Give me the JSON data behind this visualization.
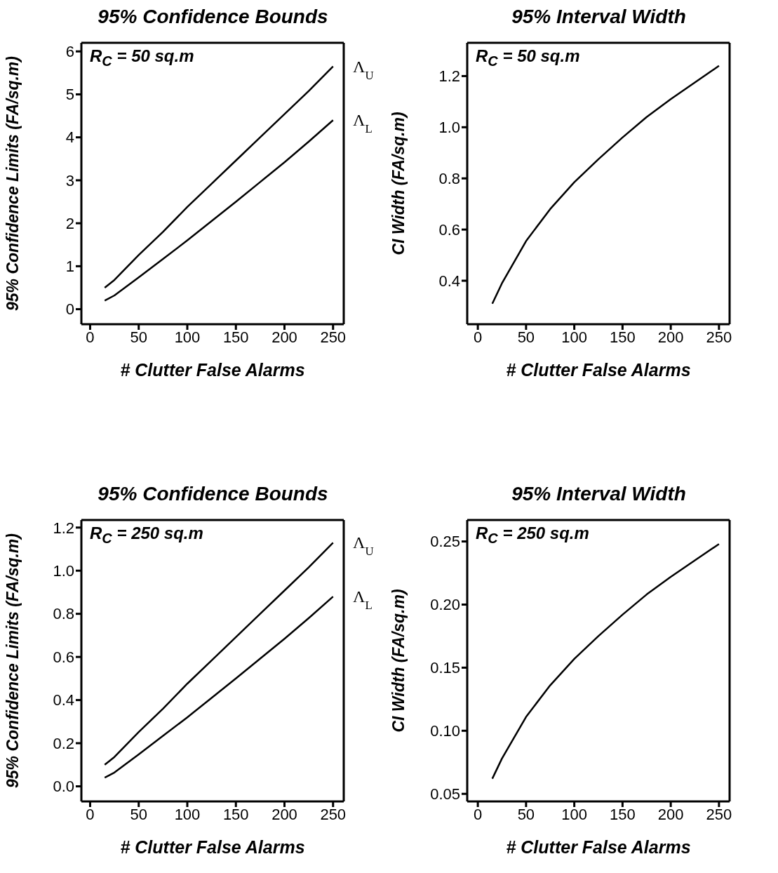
{
  "chart_data": [
    {
      "type": "line",
      "title": "95% Confidence Bounds",
      "xlabel": "# Clutter False Alarms",
      "ylabel": "95% Confidence Limits (FA/sq.m)",
      "annotations": [
        "R$_{C}$ = 50 sq.m"
      ],
      "x": [
        15,
        25,
        50,
        75,
        100,
        125,
        150,
        175,
        200,
        225,
        250
      ],
      "xlim": [
        -9,
        261
      ],
      "xticks": [
        0,
        50,
        100,
        150,
        200,
        250
      ],
      "ylim": [
        -0.35,
        6.2
      ],
      "yticks": [
        0,
        1,
        2,
        3,
        4,
        5,
        6
      ],
      "grid": false,
      "legend": false,
      "marker": "none",
      "line_style": "solid",
      "series": [
        {
          "name": "Λ$_{U}$",
          "color": "#000000",
          "values": [
            0.5,
            0.68,
            1.26,
            1.8,
            2.38,
            2.92,
            3.46,
            4.0,
            4.54,
            5.08,
            5.65
          ]
        },
        {
          "name": "Λ$_{L}$",
          "color": "#000000",
          "values": [
            0.2,
            0.32,
            0.74,
            1.17,
            1.6,
            2.05,
            2.5,
            2.96,
            3.42,
            3.9,
            4.4
          ]
        }
      ]
    },
    {
      "type": "line",
      "title": "95% Interval Width",
      "xlabel": "# Clutter False Alarms",
      "ylabel": "CI Width (FA/sq.m)",
      "annotations": [
        "R$_{C}$ = 50 sq.m"
      ],
      "x": [
        15,
        25,
        50,
        75,
        100,
        125,
        150,
        175,
        200,
        225,
        250
      ],
      "xlim": [
        -11,
        261
      ],
      "xticks": [
        0,
        50,
        100,
        150,
        200,
        250
      ],
      "ylim": [
        0.23,
        1.33
      ],
      "yticks": [
        0.4,
        0.6,
        0.8,
        {
          "value": 1,
          "label": "1.0"
        },
        1.2
      ],
      "grid": false,
      "legend": false,
      "marker": "none",
      "line_style": "solid",
      "series": [
        {
          "color": "#000000",
          "values": [
            0.31,
            0.39,
            0.555,
            0.68,
            0.785,
            0.875,
            0.96,
            1.04,
            1.11,
            1.175,
            1.24
          ]
        }
      ]
    },
    {
      "type": "line",
      "title": "95% Confidence Bounds",
      "xlabel": "# Clutter False Alarms",
      "ylabel": "95% Confidence Limits (FA/sq.m)",
      "annotations": [
        "R$_{C}$ = 250 sq.m"
      ],
      "x": [
        15,
        25,
        50,
        75,
        100,
        125,
        150,
        175,
        200,
        225,
        250
      ],
      "xlim": [
        -9,
        261
      ],
      "xticks": [
        0,
        50,
        100,
        150,
        200,
        250
      ],
      "ylim": [
        -0.07,
        1.235
      ],
      "yticks": [
        {
          "value": 0,
          "label": "0.0"
        },
        0.2,
        0.4,
        0.6,
        0.8,
        {
          "value": 1,
          "label": "1.0"
        },
        1.2
      ],
      "grid": false,
      "legend": false,
      "marker": "none",
      "line_style": "solid",
      "series": [
        {
          "name": "Λ$_{U}$",
          "color": "#000000",
          "values": [
            0.1,
            0.136,
            0.252,
            0.36,
            0.476,
            0.584,
            0.692,
            0.8,
            0.908,
            1.016,
            1.13
          ]
        },
        {
          "name": "Λ$_{L}$",
          "color": "#000000",
          "values": [
            0.04,
            0.064,
            0.148,
            0.234,
            0.32,
            0.41,
            0.5,
            0.592,
            0.684,
            0.78,
            0.88
          ]
        }
      ]
    },
    {
      "type": "line",
      "title": "95% Interval Width",
      "xlabel": "# Clutter False Alarms",
      "ylabel": "CI Width (FA/sq.m)",
      "annotations": [
        "R$_{C}$ = 250 sq.m"
      ],
      "x": [
        15,
        25,
        50,
        75,
        100,
        125,
        150,
        175,
        200,
        225,
        250
      ],
      "xlim": [
        -11,
        261
      ],
      "xticks": [
        0,
        50,
        100,
        150,
        200,
        250
      ],
      "ylim": [
        0.044,
        0.267
      ],
      "yticks": [
        0.05,
        {
          "value": 0.1,
          "label": "0.10"
        },
        0.15,
        {
          "value": 0.2,
          "label": "0.20"
        },
        0.25
      ],
      "grid": false,
      "legend": false,
      "marker": "none",
      "line_style": "solid",
      "series": [
        {
          "color": "#000000",
          "values": [
            0.062,
            0.078,
            0.111,
            0.136,
            0.157,
            0.175,
            0.192,
            0.208,
            0.222,
            0.235,
            0.248
          ]
        }
      ]
    }
  ]
}
